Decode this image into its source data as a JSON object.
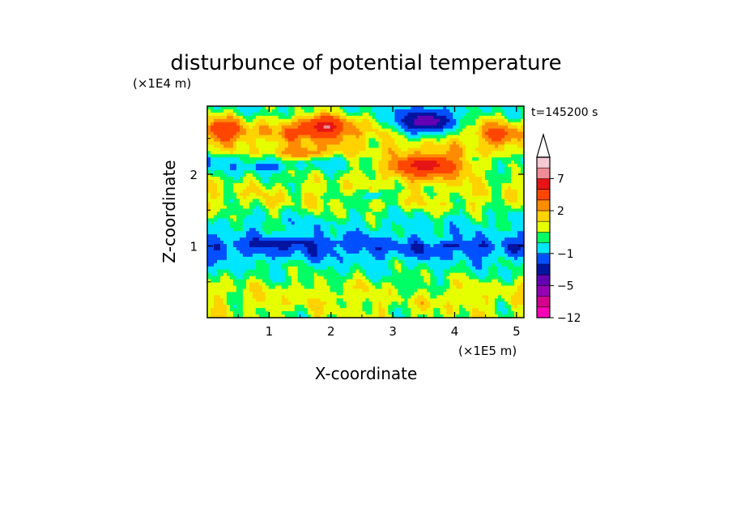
{
  "chart_data": {
    "type": "heatmap",
    "title": "disturbunce of potential temperature",
    "xlabel": "X-coordinate",
    "ylabel": "Z-coordinate",
    "x_unit": "(×1E5 m)",
    "y_unit": "(×1E4 m)",
    "time_label": "t=145200 s",
    "xlim": [
      0.0,
      5.12
    ],
    "ylim": [
      0.0,
      2.95
    ],
    "x_ticks": [
      "1",
      "2",
      "3",
      "4",
      "5"
    ],
    "y_ticks": [
      "1",
      "2"
    ],
    "colorbar": {
      "tick_labels": [
        "7",
        "2",
        "−1",
        "−5",
        "−12"
      ],
      "colors": [
        "#ff00b4",
        "#d2008c",
        "#9600b4",
        "#6400b4",
        "#0014a0",
        "#0050ff",
        "#00e6ff",
        "#00ff64",
        "#e6ff00",
        "#ffd200",
        "#ff8c00",
        "#ff4600",
        "#e61414",
        "#f08c96",
        "#f5c8d2"
      ],
      "extend": "max"
    },
    "bands": [
      {
        "y": 0.03,
        "value": 0.1
      },
      {
        "y": 0.12,
        "value": 0.3
      },
      {
        "y": 0.22,
        "value": 0.6
      },
      {
        "y": 0.33,
        "value": 0.4
      },
      {
        "y": 0.44,
        "value": 0.2
      },
      {
        "y": 0.55,
        "value": -0.4
      },
      {
        "y": 0.66,
        "value": -0.8
      },
      {
        "y": 0.78,
        "value": -1.6
      },
      {
        "y": 0.9,
        "value": -3.0
      },
      {
        "y": 1.0,
        "value": -3.4
      },
      {
        "y": 1.12,
        "value": -2.0
      },
      {
        "y": 1.22,
        "value": -1.5
      },
      {
        "y": 1.34,
        "value": -1.3
      },
      {
        "y": 1.46,
        "value": -0.5
      },
      {
        "y": 1.58,
        "value": 0.4
      },
      {
        "y": 1.7,
        "value": 0.6
      },
      {
        "y": 1.82,
        "value": 0.3
      },
      {
        "y": 1.95,
        "value": -0.2
      },
      {
        "y": 2.08,
        "value": -1.2
      },
      {
        "y": 2.2,
        "value": -1.8
      },
      {
        "y": 2.32,
        "value": 0.5
      },
      {
        "y": 2.45,
        "value": 1.2
      },
      {
        "y": 2.58,
        "value": 1.8
      },
      {
        "y": 2.72,
        "value": 0.6
      },
      {
        "y": 2.86,
        "value": -0.6
      },
      {
        "y": 2.95,
        "value": -0.8
      }
    ],
    "features": [
      {
        "x": 0.25,
        "y": 2.62,
        "rx": 0.3,
        "ry": 0.16,
        "value": 4.5
      },
      {
        "x": 1.85,
        "y": 2.66,
        "rx": 0.45,
        "ry": 0.16,
        "value": 5.5
      },
      {
        "x": 1.95,
        "y": 2.66,
        "rx": 0.08,
        "ry": 0.03,
        "value": 8.0
      },
      {
        "x": 3.5,
        "y": 2.73,
        "rx": 0.55,
        "ry": 0.22,
        "value": -5.6
      },
      {
        "x": 3.6,
        "y": 2.74,
        "rx": 0.25,
        "ry": 0.08,
        "value": -6.2
      },
      {
        "x": 3.55,
        "y": 2.12,
        "rx": 0.85,
        "ry": 0.22,
        "value": 4.2
      },
      {
        "x": 3.55,
        "y": 2.13,
        "rx": 0.3,
        "ry": 0.08,
        "value": 6.0
      },
      {
        "x": 1.5,
        "y": 2.3,
        "rx": 0.5,
        "ry": 0.1,
        "value": 2.8
      },
      {
        "x": 4.7,
        "y": 2.55,
        "rx": 0.3,
        "ry": 0.14,
        "value": 3.5
      },
      {
        "x": 0.95,
        "y": 2.1,
        "rx": 0.25,
        "ry": 0.05,
        "value": -4.0
      },
      {
        "x": 1.3,
        "y": 1.05,
        "rx": 0.65,
        "ry": 0.07,
        "value": -4.6
      },
      {
        "x": 3.95,
        "y": 1.0,
        "rx": 0.2,
        "ry": 0.05,
        "value": -4.6
      },
      {
        "x": 2.5,
        "y": 1.05,
        "rx": 0.5,
        "ry": 0.05,
        "value": -3.2
      },
      {
        "x": 2.7,
        "y": 1.7,
        "rx": 0.35,
        "ry": 0.08,
        "value": -1.4
      },
      {
        "x": 3.3,
        "y": 0.45,
        "rx": 0.18,
        "ry": 0.2,
        "value": -0.6
      },
      {
        "x": 1.6,
        "y": 0.3,
        "rx": 0.8,
        "ry": 0.1,
        "value": 0.9
      },
      {
        "x": 4.3,
        "y": 0.35,
        "rx": 0.5,
        "ry": 0.1,
        "value": 0.9
      }
    ]
  }
}
